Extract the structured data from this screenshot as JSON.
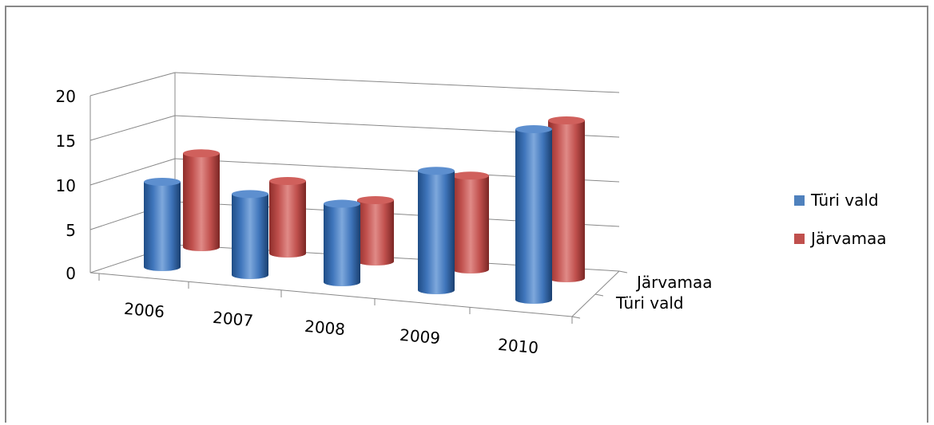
{
  "chart_data": {
    "type": "bar",
    "style": "3d-cylinder",
    "categories": [
      "2006",
      "2007",
      "2008",
      "2009",
      "2010"
    ],
    "series": [
      {
        "name": "Türi vald",
        "values": [
          10,
          9.5,
          9.2,
          14,
          20
        ],
        "color": "#4F81BD"
      },
      {
        "name": "Järvamaa",
        "values": [
          11,
          8.5,
          7.2,
          11,
          18.5
        ],
        "color": "#C0504D"
      }
    ],
    "y_ticks": [
      "0",
      "5",
      "10",
      "15",
      "20"
    ],
    "ylim": [
      0,
      20
    ],
    "depth_labels": [
      "Järvamaa",
      "Türi vald"
    ],
    "grid": true,
    "legend_position": "right"
  }
}
